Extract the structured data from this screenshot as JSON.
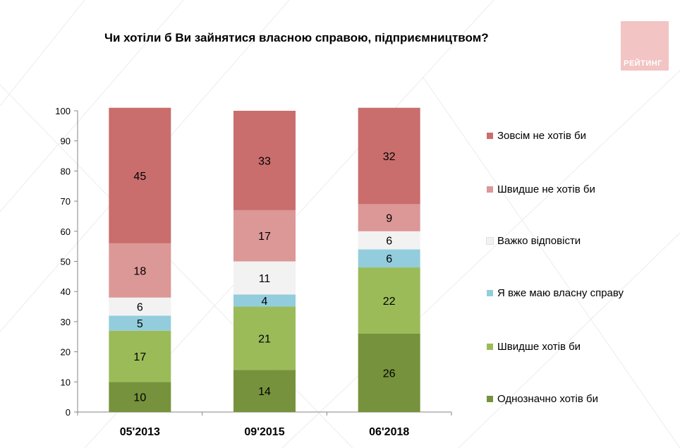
{
  "title": "Чи хотіли б Ви зайнятися власною справою, підприємництвом?",
  "logo": {
    "text": "РЕЙТИНГ",
    "color": "#f2c4c4"
  },
  "chart_data": {
    "type": "bar",
    "stacked": true,
    "categories": [
      "05'2013",
      "09'2015",
      "06'2018"
    ],
    "ylim": [
      0,
      100
    ],
    "yticks": [
      0,
      10,
      20,
      30,
      40,
      50,
      60,
      70,
      80,
      90,
      100
    ],
    "series": [
      {
        "name": "Однозначно хотів би",
        "color": "#76923c",
        "values": [
          10,
          14,
          26
        ]
      },
      {
        "name": "Швидше хотів би",
        "color": "#9bbb59",
        "values": [
          17,
          21,
          22
        ]
      },
      {
        "name": "Я вже маю власну справу",
        "color": "#93cddd",
        "values": [
          5,
          4,
          6
        ]
      },
      {
        "name": "Важко відповісти",
        "color": "#f2f2f2",
        "values": [
          6,
          11,
          6
        ]
      },
      {
        "name": "Швидше не хотів би",
        "color": "#dc9797",
        "values": [
          18,
          17,
          9
        ]
      },
      {
        "name": "Зовсім не хотів би",
        "color": "#c96e6d",
        "values": [
          45,
          33,
          32
        ]
      }
    ],
    "legend_order": [
      "Зовсім не хотів би",
      "Швидше не хотів би",
      "Важко відповісти",
      "Я вже маю власну справу",
      "Швидше хотів би",
      "Однозначно хотів би"
    ],
    "legend_position": "right",
    "grid": false
  }
}
